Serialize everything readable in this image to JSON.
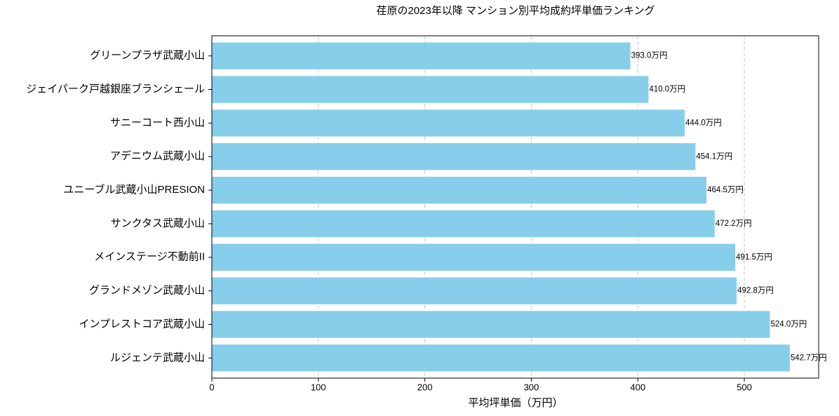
{
  "chart_data": {
    "type": "barh",
    "title": "荏原の2023年以降 マンション別平均成約坪単価ランキング",
    "x_label": "平均坪単価（万円）",
    "categories": [
      "グリーンプラザ武蔵小山",
      "ジェイパーク戸越銀座ブランシェール",
      "サニーコート西小山",
      "アデニウム武蔵小山",
      "ユニーブル武蔵小山PRESION",
      "サンクタス武蔵小山",
      "メインステージ不動前II",
      "グランドメゾン武蔵小山",
      "インプレストコア武蔵小山",
      "ルジェンテ武蔵小山"
    ],
    "values": [
      393.0,
      410.0,
      444.0,
      454.1,
      464.5,
      472.2,
      491.5,
      492.8,
      524.0,
      542.7
    ],
    "value_labels": [
      "393.0万円",
      "410.0万円",
      "444.0万円",
      "454.1万円",
      "464.5万円",
      "472.2万円",
      "491.5万円",
      "492.8万円",
      "524.0万円",
      "542.7万円"
    ],
    "color": "#87ceeb",
    "xlim": [
      0,
      569.8
    ],
    "xticks": [
      0,
      100,
      200,
      300,
      400,
      500
    ],
    "grid": true
  }
}
